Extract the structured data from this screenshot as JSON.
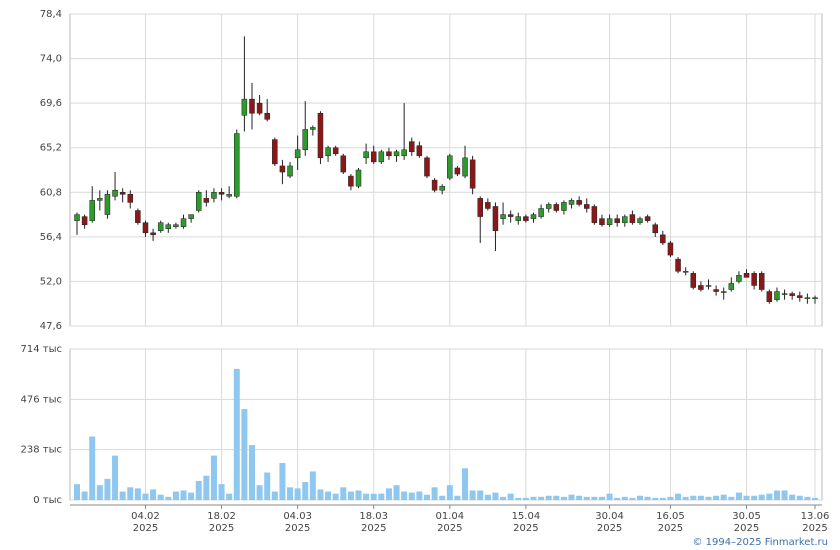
{
  "chart_data": {
    "type": "candlestick",
    "categories": [
      "22.01.2025",
      "23.01.2025",
      "24.01.2025",
      "27.01.2025",
      "28.01.2025",
      "29.01.2025",
      "30.01.2025",
      "31.01.2025",
      "03.02.2025",
      "04.02.2025",
      "05.02.2025",
      "06.02.2025",
      "07.02.2025",
      "10.02.2025",
      "11.02.2025",
      "12.02.2025",
      "13.02.2025",
      "14.02.2025",
      "17.02.2025",
      "18.02.2025",
      "19.02.2025",
      "20.02.2025",
      "21.02.2025",
      "24.02.2025",
      "25.02.2025",
      "26.02.2025",
      "27.02.2025",
      "28.02.2025",
      "03.03.2025",
      "04.03.2025",
      "05.03.2025",
      "06.03.2025",
      "07.03.2025",
      "10.03.2025",
      "11.03.2025",
      "12.03.2025",
      "13.03.2025",
      "14.03.2025",
      "17.03.2025",
      "18.03.2025",
      "19.03.2025",
      "20.03.2025",
      "21.03.2025",
      "24.03.2025",
      "25.03.2025",
      "26.03.2025",
      "27.03.2025",
      "28.03.2025",
      "31.03.2025",
      "01.04.2025",
      "02.04.2025",
      "03.04.2025",
      "04.04.2025",
      "07.04.2025",
      "08.04.2025",
      "09.04.2025",
      "10.04.2025",
      "11.04.2025",
      "14.04.2025",
      "15.04.2025",
      "16.04.2025",
      "17.04.2025",
      "18.04.2025",
      "21.04.2025",
      "22.04.2025",
      "23.04.2025",
      "24.04.2025",
      "25.04.2025",
      "28.04.2025",
      "29.04.2025",
      "30.04.2025",
      "05.05.2025",
      "06.05.2025",
      "07.05.2025",
      "12.05.2025",
      "13.05.2025",
      "14.05.2025",
      "15.05.2025",
      "16.05.2025",
      "19.05.2025",
      "20.05.2025",
      "21.05.2025",
      "22.05.2025",
      "23.05.2025",
      "26.05.2025",
      "27.05.2025",
      "28.05.2025",
      "29.05.2025",
      "30.05.2025",
      "02.06.2025",
      "03.06.2025",
      "04.06.2025",
      "05.06.2025",
      "06.06.2025",
      "09.06.2025",
      "10.06.2025",
      "11.06.2025",
      "13.06.2025"
    ],
    "open": [
      58.0,
      58.4,
      58.0,
      60.0,
      58.6,
      60.4,
      60.8,
      60.6,
      59.0,
      57.8,
      56.8,
      57.0,
      57.2,
      57.4,
      57.4,
      58.2,
      59.0,
      60.2,
      60.2,
      60.8,
      60.4,
      60.4,
      68.4,
      70.0,
      69.6,
      68.6,
      66.0,
      63.4,
      62.4,
      64.2,
      65.0,
      67.0,
      68.6,
      64.4,
      65.2,
      64.4,
      62.4,
      61.4,
      64.2,
      64.8,
      63.8,
      64.8,
      64.4,
      64.4,
      65.8,
      65.4,
      64.2,
      62.0,
      61.0,
      62.2,
      63.2,
      62.4,
      64.0,
      60.2,
      59.8,
      59.4,
      58.2,
      58.6,
      58.0,
      58.4,
      58.2,
      58.4,
      59.2,
      59.6,
      59.0,
      59.6,
      60.0,
      59.6,
      59.4,
      58.2,
      57.6,
      58.2,
      57.8,
      58.6,
      57.8,
      58.4,
      57.6,
      56.6,
      55.8,
      54.2,
      53.0,
      52.8,
      51.6,
      51.6,
      51.2,
      51.0,
      51.2,
      52.0,
      52.8,
      52.8,
      52.8,
      51.0,
      50.2,
      50.8,
      50.8,
      50.6,
      50.4,
      50.4
    ],
    "high": [
      58.8,
      58.6,
      61.4,
      61.0,
      61.0,
      62.8,
      61.2,
      61.0,
      59.2,
      58.0,
      57.2,
      58.0,
      57.8,
      57.8,
      58.6,
      58.6,
      61.0,
      61.0,
      61.2,
      61.2,
      61.4,
      67.0,
      76.2,
      71.6,
      70.4,
      70.0,
      66.2,
      64.0,
      63.8,
      66.4,
      69.8,
      67.4,
      68.8,
      65.4,
      65.4,
      64.6,
      62.6,
      63.2,
      65.6,
      65.4,
      65.0,
      65.2,
      65.0,
      69.6,
      66.2,
      65.8,
      64.4,
      62.2,
      61.6,
      64.6,
      63.4,
      65.4,
      64.4,
      60.4,
      60.2,
      59.8,
      59.8,
      59.0,
      58.8,
      58.6,
      58.8,
      59.6,
      59.8,
      59.8,
      60.0,
      60.2,
      60.4,
      60.2,
      59.6,
      58.6,
      58.6,
      58.6,
      58.6,
      59.0,
      58.4,
      58.6,
      57.8,
      57.0,
      56.0,
      54.4,
      53.4,
      53.0,
      52.0,
      52.2,
      51.6,
      51.4,
      52.4,
      53.0,
      53.2,
      53.0,
      53.0,
      51.2,
      51.4,
      51.2,
      51.0,
      51.0,
      50.8,
      50.6
    ],
    "low": [
      56.6,
      57.2,
      57.8,
      59.0,
      58.2,
      60.0,
      59.8,
      59.2,
      57.6,
      56.4,
      56.0,
      56.8,
      56.8,
      57.2,
      57.2,
      57.8,
      58.8,
      59.4,
      59.8,
      60.0,
      60.2,
      60.2,
      66.8,
      67.0,
      68.4,
      67.8,
      63.4,
      61.6,
      62.2,
      63.0,
      64.4,
      66.4,
      63.6,
      63.8,
      64.4,
      62.6,
      61.0,
      61.2,
      63.6,
      63.6,
      63.6,
      64.0,
      63.8,
      64.0,
      64.4,
      64.2,
      62.2,
      60.8,
      60.6,
      62.0,
      62.4,
      62.2,
      60.6,
      55.8,
      59.0,
      55.0,
      57.6,
      57.8,
      57.6,
      57.8,
      57.8,
      58.2,
      58.8,
      58.8,
      58.6,
      59.2,
      59.4,
      58.8,
      57.6,
      57.4,
      57.4,
      57.4,
      57.4,
      57.6,
      57.6,
      57.8,
      56.4,
      55.6,
      54.4,
      52.8,
      52.6,
      51.2,
      51.0,
      51.2,
      50.6,
      50.2,
      51.0,
      51.8,
      52.4,
      51.2,
      51.0,
      49.8,
      50.0,
      50.2,
      50.2,
      50.0,
      49.8,
      49.8
    ],
    "close": [
      58.6,
      57.6,
      60.0,
      60.2,
      60.6,
      61.0,
      60.6,
      59.8,
      57.8,
      56.8,
      56.6,
      57.8,
      57.6,
      57.6,
      58.2,
      58.6,
      60.8,
      59.8,
      60.8,
      60.6,
      60.6,
      66.6,
      70.0,
      68.6,
      68.6,
      68.0,
      63.6,
      62.8,
      63.4,
      65.0,
      67.0,
      67.2,
      64.2,
      65.2,
      64.6,
      62.8,
      61.4,
      63.0,
      64.8,
      63.8,
      64.8,
      64.4,
      64.8,
      65.0,
      64.8,
      64.4,
      62.4,
      61.0,
      61.4,
      64.4,
      62.6,
      64.2,
      61.2,
      58.4,
      59.2,
      57.0,
      58.6,
      58.4,
      58.4,
      58.0,
      58.6,
      59.2,
      59.6,
      59.0,
      59.8,
      60.0,
      59.6,
      59.2,
      57.8,
      57.6,
      58.2,
      57.8,
      58.4,
      57.8,
      58.2,
      58.0,
      56.8,
      55.8,
      54.6,
      53.0,
      53.0,
      51.4,
      51.2,
      51.6,
      51.0,
      51.0,
      51.8,
      52.6,
      52.4,
      51.6,
      51.2,
      50.0,
      51.0,
      50.8,
      50.6,
      50.4,
      50.4,
      50.4
    ],
    "up_color": "#2e9a2e",
    "down_color": "#8b1818",
    "ylim": [
      47.6,
      78.4
    ],
    "yticks": [
      {
        "value": 47.6,
        "label": "47,6"
      },
      {
        "value": 52.0,
        "label": "52,0"
      },
      {
        "value": 56.4,
        "label": "56,4"
      },
      {
        "value": 60.8,
        "label": "60,8"
      },
      {
        "value": 65.2,
        "label": "65,2"
      },
      {
        "value": 69.6,
        "label": "69,6"
      },
      {
        "value": 74.0,
        "label": "74,0"
      },
      {
        "value": 78.4,
        "label": "78,4"
      }
    ],
    "volume": {
      "color": "#8ec8f0",
      "values": [
        75,
        40,
        300,
        70,
        100,
        210,
        40,
        60,
        55,
        30,
        50,
        25,
        15,
        40,
        45,
        35,
        90,
        115,
        210,
        75,
        30,
        620,
        430,
        260,
        70,
        130,
        40,
        175,
        60,
        55,
        85,
        135,
        50,
        40,
        30,
        60,
        40,
        45,
        30,
        30,
        30,
        55,
        70,
        40,
        35,
        40,
        25,
        60,
        20,
        70,
        20,
        150,
        45,
        45,
        25,
        35,
        15,
        30,
        10,
        10,
        15,
        15,
        20,
        20,
        15,
        25,
        20,
        15,
        15,
        15,
        30,
        10,
        15,
        10,
        20,
        15,
        10,
        10,
        15,
        30,
        15,
        20,
        20,
        15,
        20,
        25,
        15,
        35,
        20,
        20,
        25,
        30,
        45,
        45,
        25,
        20,
        15,
        10
      ],
      "ylim": [
        0,
        714
      ],
      "yticks": [
        {
          "value": 0,
          "label": "0 тыс"
        },
        {
          "value": 238,
          "label": "238 тыс"
        },
        {
          "value": 476,
          "label": "476 тыс"
        },
        {
          "value": 714,
          "label": "714 тыс"
        }
      ]
    },
    "xticks": [
      {
        "value": "04.02.2025",
        "label": "04.02",
        "year": "2025"
      },
      {
        "value": "18.02.2025",
        "label": "18.02",
        "year": "2025"
      },
      {
        "value": "04.03.2025",
        "label": "04.03",
        "year": "2025"
      },
      {
        "value": "18.03.2025",
        "label": "18.03",
        "year": "2025"
      },
      {
        "value": "01.04.2025",
        "label": "01.04",
        "year": "2025"
      },
      {
        "value": "15.04.2025",
        "label": "15.04",
        "year": "2025"
      },
      {
        "value": "30.04.2025",
        "label": "30.04",
        "year": "2025"
      },
      {
        "value": "16.05.2025",
        "label": "16.05",
        "year": "2025"
      },
      {
        "value": "30.05.2025",
        "label": "30.05",
        "year": "2025"
      },
      {
        "value": "13.06.2025",
        "label": "13.06",
        "year": "2025"
      }
    ],
    "source": "© 1994–2025 Finmarket.ru",
    "grid": true
  }
}
